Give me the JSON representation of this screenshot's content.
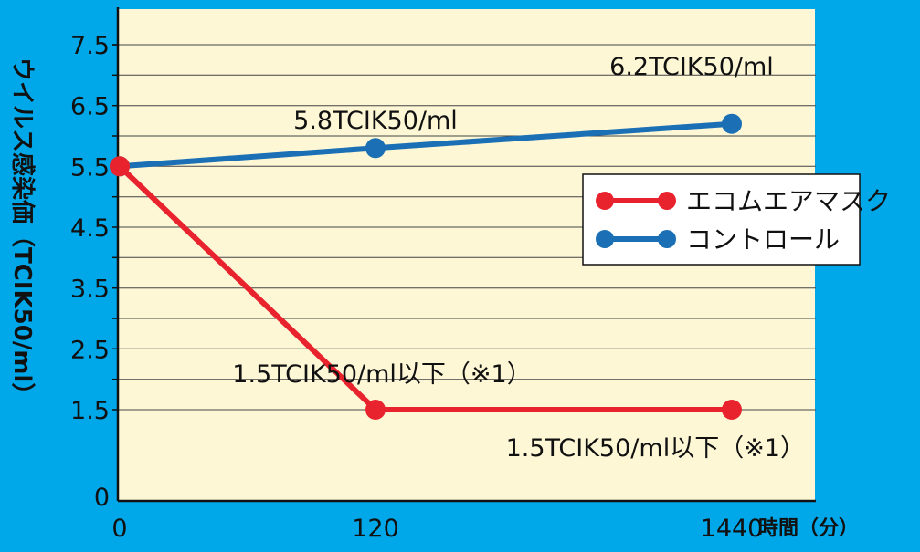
{
  "chart_data": {
    "type": "line",
    "ylabel": "ウイルス感染価（TCIK50/ml）",
    "xlabel": "時間（分）",
    "categories": [
      "0",
      "120",
      "1440"
    ],
    "yticks": [
      {
        "value": 0,
        "label": "0"
      },
      {
        "value": 1.5,
        "label": "1.5"
      },
      {
        "value": 2.5,
        "label": "2.5"
      },
      {
        "value": 3.5,
        "label": "3.5"
      },
      {
        "value": 4.5,
        "label": "4.5"
      },
      {
        "value": 5.5,
        "label": "5.5"
      },
      {
        "value": 6.5,
        "label": "6.5"
      },
      {
        "value": 7.5,
        "label": "7.5"
      }
    ],
    "series": [
      {
        "name": "エコムエアマスク",
        "color": "#e8232e",
        "values": [
          5.5,
          1.5,
          1.5
        ],
        "labels": [
          "",
          "1.5TCIK50/ml以下（※1）",
          "1.5TCIK50/ml以下（※1）"
        ]
      },
      {
        "name": "コントロール",
        "color": "#1a6fb5",
        "values": [
          5.5,
          5.8,
          6.2
        ],
        "labels": [
          "",
          "5.8TCIK50/ml",
          "6.2TCIK50/ml"
        ]
      }
    ],
    "legend_position": "right"
  }
}
